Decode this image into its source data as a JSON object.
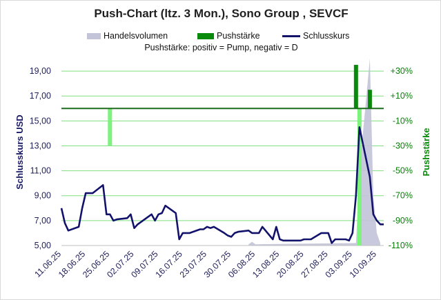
{
  "chart_data": {
    "type": "line",
    "title": "Push-Chart (ltz. 3 Mon.), Sono Group , SEVCF",
    "subtitle_label": "Pushstärke:",
    "subtitle_text": "positiv = Pump, negativ = D",
    "ylabel_left": "Schlusskurs USD",
    "ylabel_right": "Pushstärke",
    "y_left": {
      "min": 5,
      "max": 20,
      "ticks": [
        "5,00",
        "7,00",
        "9,00",
        "11,00",
        "13,00",
        "15,00",
        "17,00",
        "19,00"
      ]
    },
    "y_right": {
      "min": -110,
      "max": 40,
      "ticks": [
        "-110%",
        "-90%",
        "-70%",
        "-50%",
        "-30%",
        "-10%",
        "+10%",
        "+30%"
      ]
    },
    "x_ticks": [
      "11.06.25",
      "18.06.25",
      "25.06.25",
      "02.07.25",
      "09.07.25",
      "16.07.25",
      "23.07.25",
      "30.07.25",
      "06.08.25",
      "13.08.25",
      "20.08.25",
      "27.08.25",
      "03.09.25",
      "10.09.25"
    ],
    "legend": [
      "Handelsvolumen",
      "Pushstärke",
      "Schlusskurs"
    ],
    "colors": {
      "close": "#12126b",
      "push_positive": "#0a8a0a",
      "push_negative": "#7df27d",
      "volume": "#c3c3d9",
      "grid": "#7ee07e",
      "zero_line": "#1a6b1a"
    },
    "series": [
      {
        "name": "Schlusskurs",
        "points": [
          [
            "11.06.25",
            8.0
          ],
          [
            "12.06.25",
            6.8
          ],
          [
            "13.06.25",
            6.2
          ],
          [
            "16.06.25",
            6.5
          ],
          [
            "17.06.25",
            8.0
          ],
          [
            "18.06.25",
            9.2
          ],
          [
            "19.06.25",
            9.2
          ],
          [
            "20.06.25",
            9.2
          ],
          [
            "23.06.25",
            9.85
          ],
          [
            "24.06.25",
            7.5
          ],
          [
            "25.06.25",
            7.5
          ],
          [
            "26.06.25",
            7.0
          ],
          [
            "27.06.25",
            7.1
          ],
          [
            "30.06.25",
            7.2
          ],
          [
            "01.07.25",
            7.5
          ],
          [
            "02.07.25",
            6.4
          ],
          [
            "03.07.25",
            6.7
          ],
          [
            "07.07.25",
            7.5
          ],
          [
            "08.07.25",
            7.0
          ],
          [
            "09.07.25",
            7.5
          ],
          [
            "10.07.25",
            7.6
          ],
          [
            "11.07.25",
            8.2
          ],
          [
            "14.07.25",
            7.6
          ],
          [
            "15.07.25",
            5.5
          ],
          [
            "16.07.25",
            6.0
          ],
          [
            "17.07.25",
            6.0
          ],
          [
            "18.07.25",
            6.0
          ],
          [
            "21.07.25",
            6.3
          ],
          [
            "22.07.25",
            6.3
          ],
          [
            "23.07.25",
            6.5
          ],
          [
            "24.07.25",
            6.4
          ],
          [
            "25.07.25",
            6.5
          ],
          [
            "28.07.25",
            6.0
          ],
          [
            "29.07.25",
            5.8
          ],
          [
            "30.07.25",
            5.7
          ],
          [
            "31.07.25",
            6.0
          ],
          [
            "01.08.25",
            6.1
          ],
          [
            "04.08.25",
            6.2
          ],
          [
            "05.08.25",
            6.0
          ],
          [
            "06.08.25",
            6.0
          ],
          [
            "07.08.25",
            6.0
          ],
          [
            "08.08.25",
            6.5
          ],
          [
            "11.08.25",
            5.5
          ],
          [
            "12.08.25",
            6.5
          ],
          [
            "13.08.25",
            5.5
          ],
          [
            "14.08.25",
            5.4
          ],
          [
            "15.08.25",
            5.4
          ],
          [
            "18.08.25",
            5.4
          ],
          [
            "19.08.25",
            5.4
          ],
          [
            "20.08.25",
            5.5
          ],
          [
            "21.08.25",
            5.5
          ],
          [
            "22.08.25",
            5.5
          ],
          [
            "25.08.25",
            6.0
          ],
          [
            "26.08.25",
            6.0
          ],
          [
            "27.08.25",
            6.0
          ],
          [
            "28.08.25",
            5.2
          ],
          [
            "29.08.25",
            5.5
          ],
          [
            "01.09.25",
            5.5
          ],
          [
            "02.09.25",
            5.4
          ],
          [
            "03.09.25",
            6.0
          ],
          [
            "04.09.25",
            9.0
          ],
          [
            "05.09.25",
            14.5
          ],
          [
            "08.09.25",
            10.5
          ],
          [
            "09.09.25",
            7.5
          ],
          [
            "10.09.25",
            7.0
          ],
          [
            "11.09.25",
            6.7
          ],
          [
            "12.09.25",
            6.7
          ]
        ]
      },
      {
        "name": "Pushstärke",
        "bars": [
          [
            "25.06.25",
            -30
          ],
          [
            "04.09.25",
            35
          ],
          [
            "05.09.25",
            -110
          ],
          [
            "08.09.25",
            15
          ]
        ]
      },
      {
        "name": "Handelsvolumen",
        "points": [
          [
            "04.08.25",
            0.1
          ],
          [
            "05.08.25",
            0.3
          ],
          [
            "06.08.25",
            0.1
          ],
          [
            "04.09.25",
            0.2
          ],
          [
            "05.09.25",
            6.0
          ],
          [
            "08.09.25",
            15.0
          ],
          [
            "09.09.25",
            4.0
          ],
          [
            "10.09.25",
            1.0
          ],
          [
            "11.09.25",
            0.2
          ]
        ]
      }
    ]
  }
}
